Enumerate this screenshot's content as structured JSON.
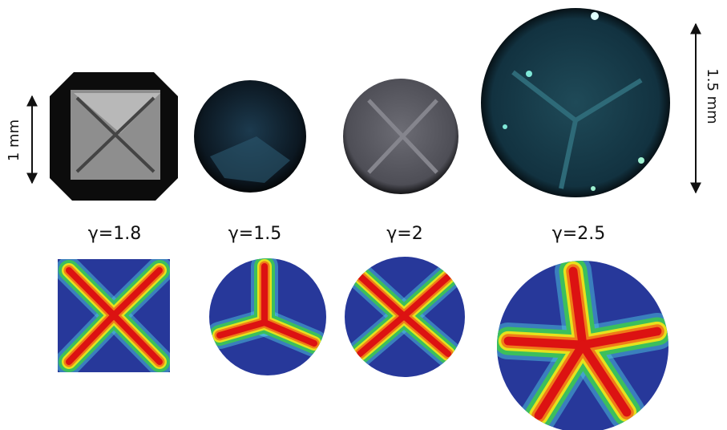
{
  "scale_bars": [
    {
      "label": "1 mm"
    },
    {
      "label": "1.5 mm"
    }
  ],
  "panels": [
    {
      "label": "γ=1.8"
    },
    {
      "label": "γ=1.5"
    },
    {
      "label": "γ=2"
    },
    {
      "label": "γ=2.5"
    }
  ]
}
